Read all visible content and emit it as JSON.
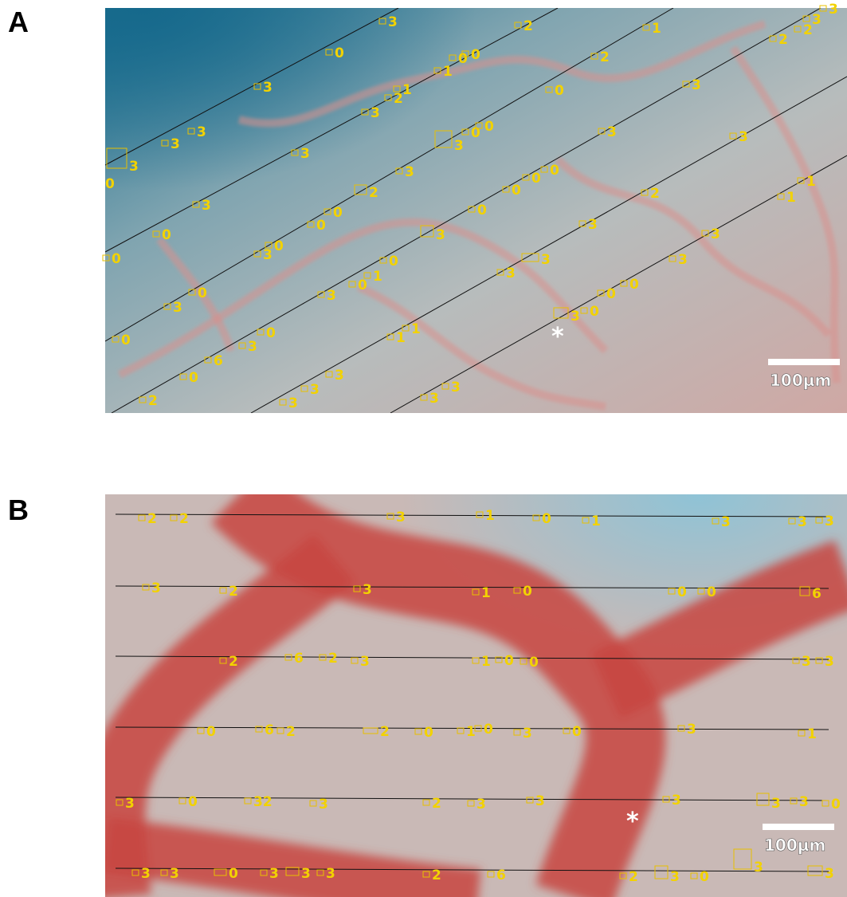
{
  "panels": [
    {
      "letter": "A",
      "marker": "*",
      "scale_bar": "100µm",
      "labels": [
        "3",
        "2",
        "1",
        "0",
        "1",
        "0",
        "0",
        "2",
        "2",
        "2",
        "3",
        "3",
        "3",
        "1",
        "2",
        "3",
        "0",
        "3",
        "3",
        "3",
        "0",
        "0",
        "3",
        "3",
        "3",
        "3",
        "3",
        "0",
        "3",
        "0",
        "0",
        "0",
        "1",
        "2",
        "3",
        "0",
        "0",
        "0",
        "2",
        "1",
        "0",
        "3",
        "3",
        "3",
        "0",
        "3",
        "0",
        "0",
        "3",
        "3",
        "3",
        "1",
        "0",
        "0",
        "3",
        "0",
        "0",
        "3",
        "0",
        "3",
        "1",
        "1",
        "0",
        "3",
        "0",
        "6",
        "0",
        "3",
        "3",
        "3",
        "3",
        "3",
        "2"
      ]
    },
    {
      "letter": "B",
      "marker": "*",
      "scale_bar": "100µm",
      "labels": [
        "2",
        "2",
        "3",
        "1",
        "0",
        "1",
        "3",
        "3",
        "3",
        "3",
        "2",
        "3",
        "1",
        "0",
        "0",
        "0",
        "6",
        "2",
        "6",
        "2",
        "3",
        "1",
        "0",
        "0",
        "3",
        "3",
        "0",
        "6",
        "2",
        "2",
        "0",
        "1",
        "0",
        "3",
        "0",
        "3",
        "1",
        "3",
        "0",
        "32",
        "3",
        "2",
        "3",
        "3",
        "3",
        "3",
        "3",
        "0",
        "3",
        "3",
        "0",
        "3",
        "3",
        "3",
        "2",
        "6",
        "2",
        "3",
        "0",
        "3",
        "3"
      ]
    }
  ]
}
